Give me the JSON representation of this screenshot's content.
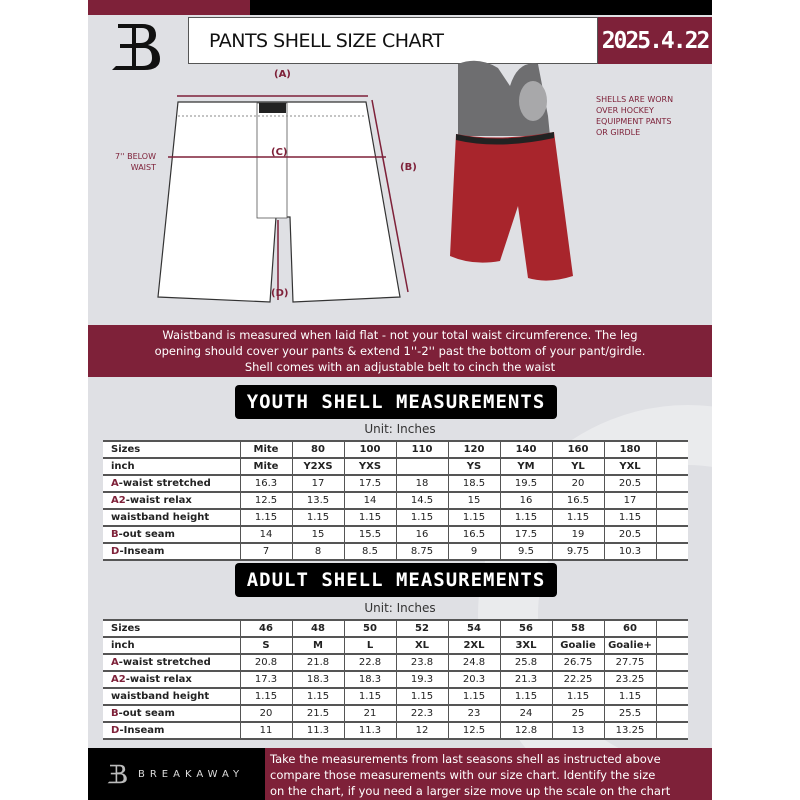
{
  "header": {
    "title": "PANTS SHELL SIZE CHART",
    "date": "2025.4.22",
    "logo_letter": "B"
  },
  "diagram": {
    "label_a": "(A)",
    "label_b": "(B)",
    "label_c": "(C)",
    "label_d": "(D)",
    "c_note": [
      "7'' BELOW",
      "WAIST"
    ],
    "photo_note": [
      "SHELLS ARE WORN",
      "OVER HOCKEY",
      "EQUIPMENT PANTS",
      "OR GIRDLE"
    ]
  },
  "info_band": [
    "Waistband is measured when laid flat - not your total waist circumference. The leg",
    "opening should cover your pants & extend 1''-2'' past the bottom of your pant/girdle.",
    "Shell comes with an adjustable belt to cinch the waist"
  ],
  "youth": {
    "title": "YOUTH SHELL MEASUREMENTS",
    "unit": "Unit: Inches",
    "rows": [
      {
        "prefix": "",
        "label": "Sizes",
        "values": [
          "Mite",
          "80",
          "100",
          "110",
          "120",
          "140",
          "160",
          "180"
        ]
      },
      {
        "prefix": "",
        "label": "inch",
        "values": [
          "Mite",
          "Y2XS",
          "YXS",
          "",
          "YS",
          "YM",
          "YL",
          "YXL"
        ]
      },
      {
        "prefix": "A",
        "label": "-waist stretched",
        "values": [
          "16.3",
          "17",
          "17.5",
          "18",
          "18.5",
          "19.5",
          "20",
          "20.5"
        ]
      },
      {
        "prefix": "A2",
        "label": "-waist relax",
        "values": [
          "12.5",
          "13.5",
          "14",
          "14.5",
          "15",
          "16",
          "16.5",
          "17"
        ]
      },
      {
        "prefix": "",
        "label": "waistband height",
        "values": [
          "1.15",
          "1.15",
          "1.15",
          "1.15",
          "1.15",
          "1.15",
          "1.15",
          "1.15"
        ]
      },
      {
        "prefix": "B",
        "label": "-out seam",
        "values": [
          "14",
          "15",
          "15.5",
          "16",
          "16.5",
          "17.5",
          "19",
          "20.5"
        ]
      },
      {
        "prefix": "D",
        "label": "-Inseam",
        "values": [
          "7",
          "8",
          "8.5",
          "8.75",
          "9",
          "9.5",
          "9.75",
          "10.3"
        ]
      }
    ]
  },
  "adult": {
    "title": "ADULT SHELL MEASUREMENTS",
    "unit": "Unit: Inches",
    "rows": [
      {
        "prefix": "",
        "label": "Sizes",
        "values": [
          "46",
          "48",
          "50",
          "52",
          "54",
          "56",
          "58",
          "60"
        ]
      },
      {
        "prefix": "",
        "label": "inch",
        "values": [
          "S",
          "M",
          "L",
          "XL",
          "2XL",
          "3XL",
          "Goalie",
          "Goalie+"
        ]
      },
      {
        "prefix": "A",
        "label": "-waist stretched",
        "values": [
          "20.8",
          "21.8",
          "22.8",
          "23.8",
          "24.8",
          "25.8",
          "26.75",
          "27.75"
        ]
      },
      {
        "prefix": "A2",
        "label": "-waist relax",
        "values": [
          "17.3",
          "18.3",
          "18.3",
          "19.3",
          "20.3",
          "21.3",
          "22.25",
          "23.25"
        ]
      },
      {
        "prefix": "",
        "label": "waistband height",
        "values": [
          "1.15",
          "1.15",
          "1.15",
          "1.15",
          "1.15",
          "1.15",
          "1.15",
          "1.15"
        ]
      },
      {
        "prefix": "B",
        "label": "-out seam",
        "values": [
          "20",
          "21.5",
          "21",
          "22.3",
          "23",
          "24",
          "25",
          "25.5"
        ]
      },
      {
        "prefix": "D",
        "label": "-Inseam",
        "values": [
          "11",
          "11.3",
          "11.3",
          "12",
          "12.5",
          "12.8",
          "13",
          "13.25"
        ]
      }
    ]
  },
  "footer": {
    "brand": "BREAKAWAY",
    "text": [
      "Take the measurements from last seasons shell as instructed above",
      "compare those measurements  with our size chart. Identify the size",
      "on the chart, if you need a larger size move up the scale on the chart"
    ]
  },
  "colors": {
    "maroon": "#7e2139",
    "background": "#dfe0e4",
    "black": "#000000"
  }
}
